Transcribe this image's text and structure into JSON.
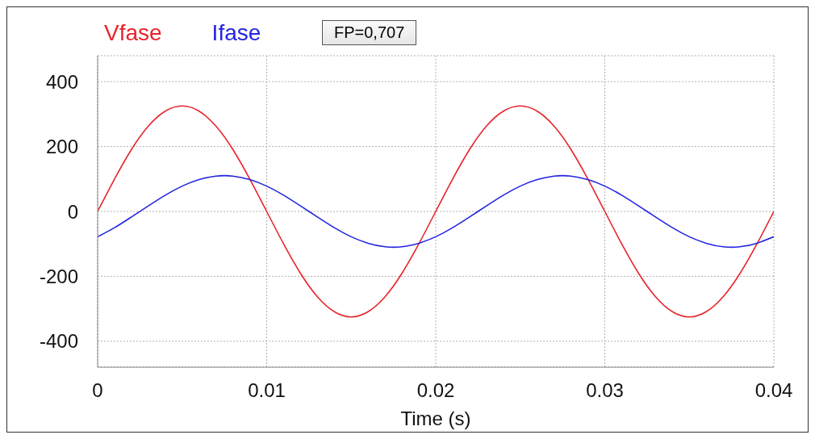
{
  "chart_data": {
    "type": "line",
    "xlabel": "Time (s)",
    "annotations": [
      "FP=0,707"
    ],
    "x": [
      0,
      0.001,
      0.002,
      0.003,
      0.004,
      0.005,
      0.006,
      0.007,
      0.008,
      0.009,
      0.01,
      0.011,
      0.012,
      0.013,
      0.014,
      0.015,
      0.016,
      0.017,
      0.018,
      0.019,
      0.02,
      0.021,
      0.022,
      0.023,
      0.024,
      0.025,
      0.026,
      0.027,
      0.028,
      0.029,
      0.03,
      0.031,
      0.032,
      0.033,
      0.034,
      0.035,
      0.036,
      0.037,
      0.038,
      0.039,
      0.04
    ],
    "series": [
      {
        "name": "Vfase",
        "color": "#e8242c",
        "values": [
          0,
          100,
          191,
          263,
          309,
          325,
          309,
          263,
          191,
          100,
          0,
          -100,
          -191,
          -263,
          -309,
          -325,
          -309,
          -263,
          -191,
          -100,
          0,
          100,
          191,
          263,
          309,
          325,
          309,
          263,
          191,
          100,
          0,
          -100,
          -191,
          -263,
          -309,
          -325,
          -309,
          -263,
          -191,
          -100,
          0
        ]
      },
      {
        "name": "Ifase",
        "color": "#2424e0",
        "values": [
          -78,
          -50,
          -17,
          17,
          50,
          78,
          98,
          109,
          109,
          98,
          78,
          50,
          17,
          -17,
          -50,
          -78,
          -98,
          -109,
          -109,
          -98,
          -78,
          -50,
          -17,
          17,
          50,
          78,
          98,
          109,
          109,
          98,
          78,
          50,
          17,
          -17,
          -50,
          -78,
          -98,
          -109,
          -109,
          -98,
          -78
        ]
      }
    ],
    "xlim": [
      0,
      0.04
    ],
    "xticks": [
      0,
      0.01,
      0.02,
      0.03,
      0.04
    ],
    "ylim": [
      -480,
      480
    ],
    "yticks": [
      -400,
      -200,
      0,
      200,
      400
    ],
    "grid": true,
    "legend": "top left",
    "marker": "none",
    "line_style": "solid"
  }
}
